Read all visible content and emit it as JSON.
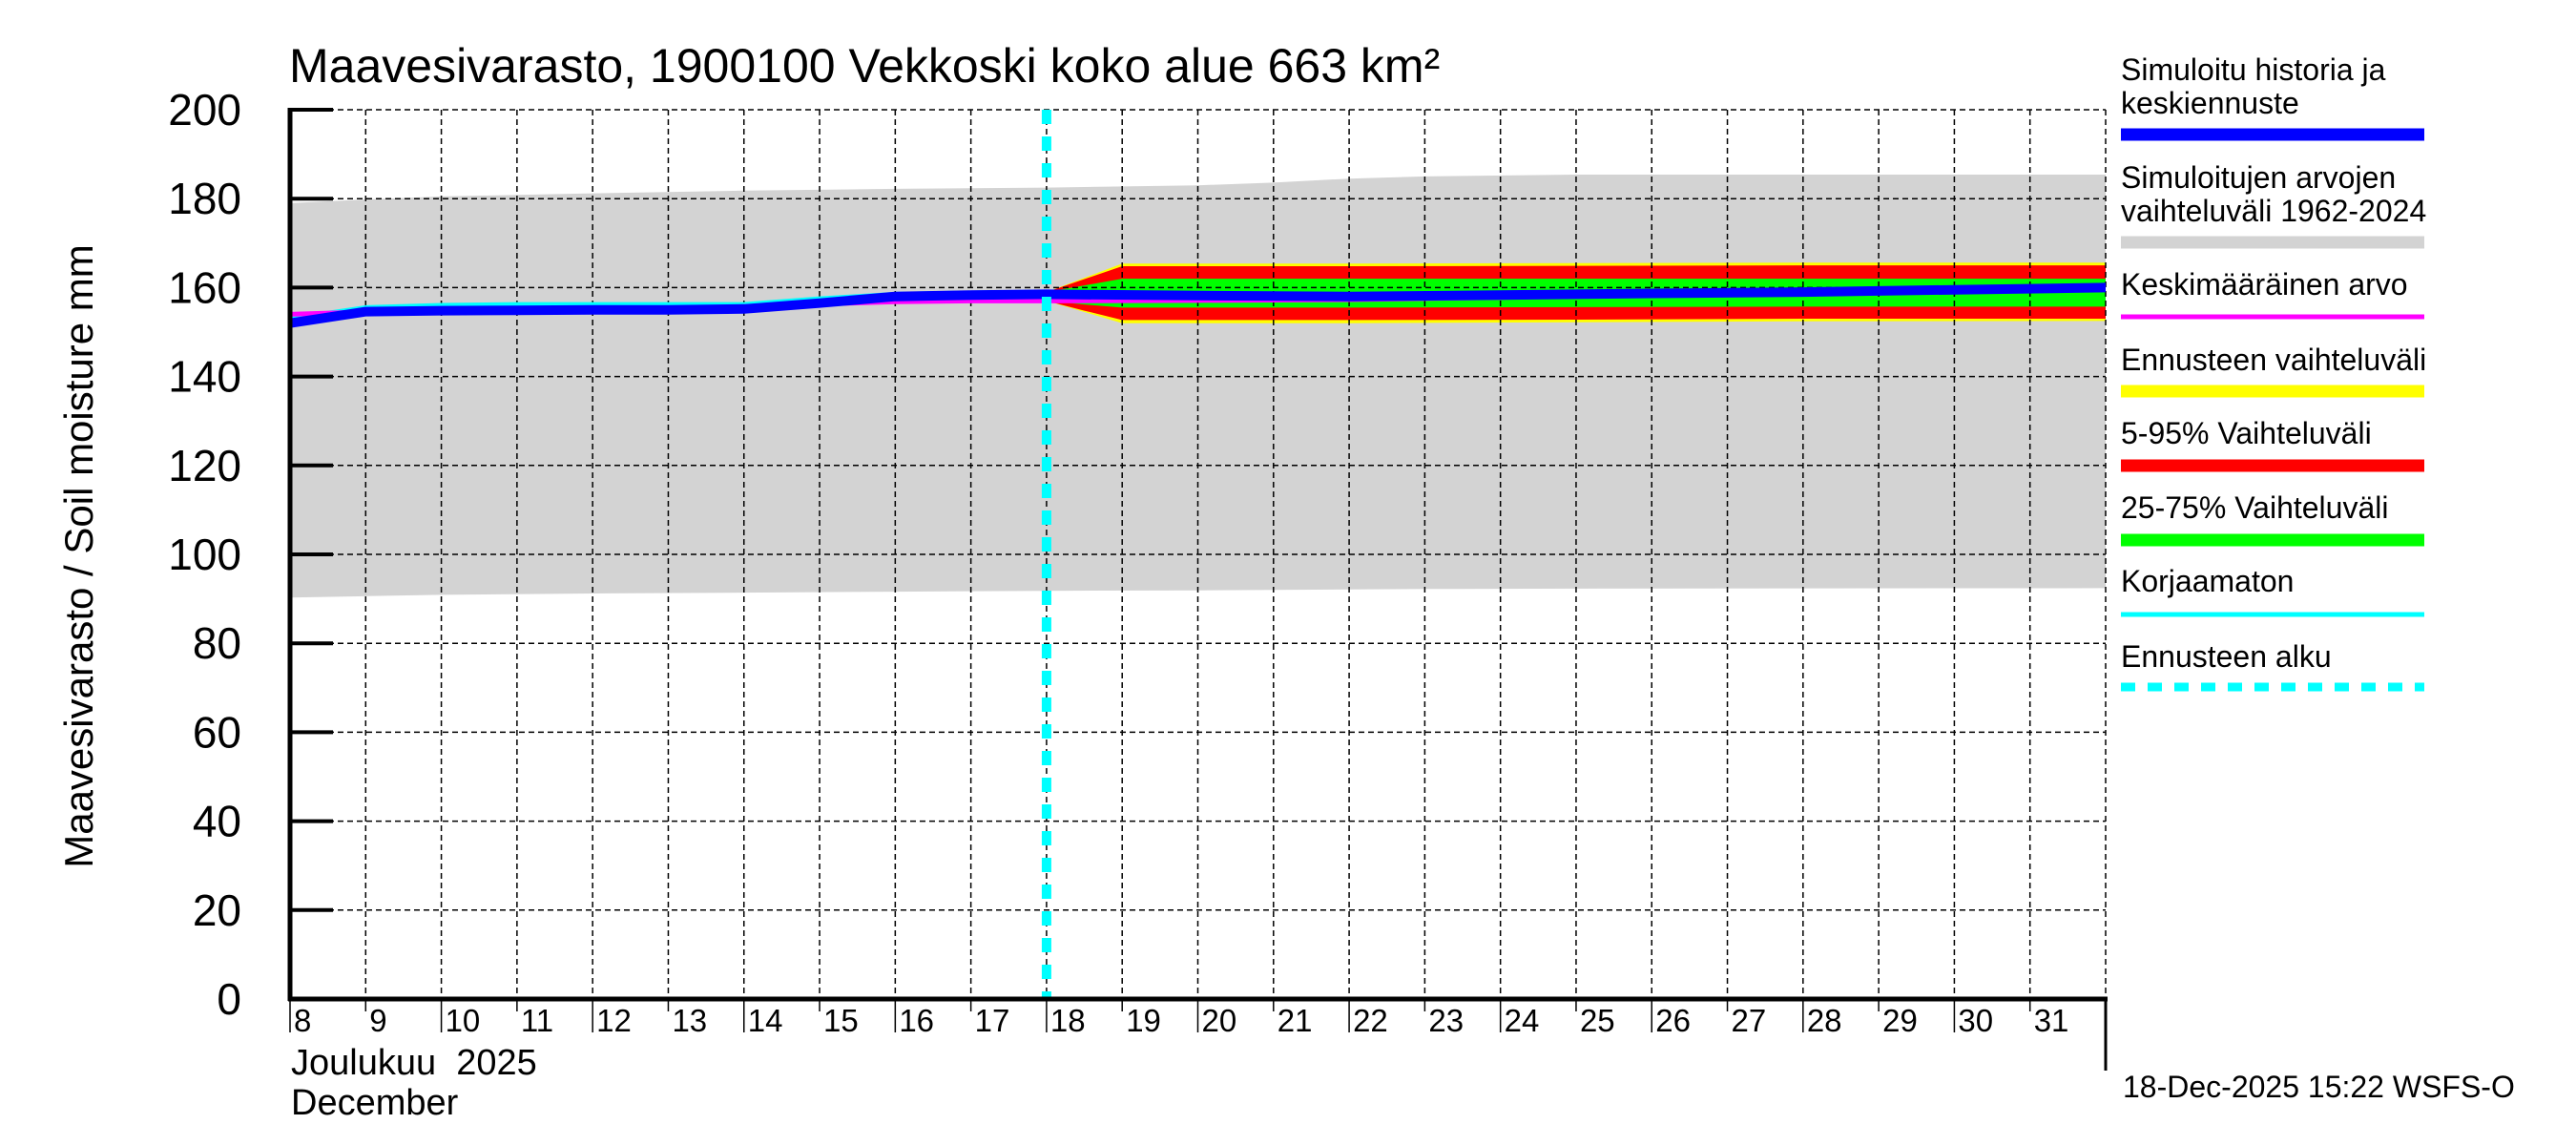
{
  "chart_data": {
    "type": "area",
    "title": "Maavesivarasto, 1900100 Vekkoski koko alue 663 km²",
    "ylabel": "Maavesivarasto / Soil moisture   mm",
    "xlabel_line1": "Joulukuu  2025",
    "xlabel_line2": "December",
    "ylim": [
      0,
      200
    ],
    "xlim": [
      8,
      32
    ],
    "grid": true,
    "legend_position": "right",
    "y_ticks": [
      "0",
      "20",
      "40",
      "60",
      "80",
      "100",
      "120",
      "140",
      "160",
      "180",
      "200"
    ],
    "y_tick_values": [
      0,
      20,
      40,
      60,
      80,
      100,
      120,
      140,
      160,
      180,
      200
    ],
    "x_ticks": [
      "8",
      "9",
      "10",
      "11",
      "12",
      "13",
      "14",
      "15",
      "16",
      "17",
      "18",
      "19",
      "20",
      "21",
      "22",
      "23",
      "24",
      "25",
      "26",
      "27",
      "28",
      "29",
      "30",
      "31"
    ],
    "x_tick_values": [
      8,
      9,
      10,
      11,
      12,
      13,
      14,
      15,
      16,
      17,
      18,
      19,
      20,
      21,
      22,
      23,
      24,
      25,
      26,
      27,
      28,
      29,
      30,
      31
    ],
    "forecast_start": 18,
    "series": [
      {
        "name": "Simuloitujen arvojen vaihteluväli 1962-2024",
        "kind": "band",
        "color": "#d3d3d3",
        "x": [
          8,
          9,
          10,
          12,
          14,
          16,
          18,
          20,
          21,
          22,
          23,
          25,
          32
        ],
        "upper": [
          179.0,
          179.8,
          180.5,
          181.2,
          181.8,
          182.2,
          182.5,
          183.0,
          183.6,
          184.5,
          185.0,
          185.4,
          185.4
        ],
        "lower": [
          90.3,
          90.6,
          90.9,
          91.2,
          91.4,
          91.6,
          91.8,
          91.9,
          92.0,
          92.1,
          92.2,
          92.3,
          92.4
        ]
      },
      {
        "name": "Ennusteen vaihteluväli",
        "kind": "band",
        "color": "#ffff00",
        "x": [
          18,
          18.5,
          19,
          22,
          25,
          28,
          32
        ],
        "upper": [
          159.0,
          162.2,
          165.4,
          165.4,
          165.5,
          165.6,
          165.6
        ],
        "lower": [
          157.0,
          154.5,
          152.0,
          152.0,
          152.2,
          152.4,
          152.5
        ]
      },
      {
        "name": "5-95% Vaihteluväli",
        "kind": "band",
        "color": "#ff0000",
        "x": [
          18,
          18.5,
          19,
          22,
          25,
          28,
          32
        ],
        "upper": [
          159.0,
          161.9,
          164.8,
          164.8,
          164.9,
          165.0,
          165.0
        ],
        "lower": [
          157.0,
          154.8,
          152.7,
          152.7,
          152.8,
          153.0,
          153.0
        ]
      },
      {
        "name": "25-75% Vaihteluväli",
        "kind": "band",
        "color": "#00ff00",
        "x": [
          18,
          18.5,
          19,
          22,
          25,
          28,
          32
        ],
        "upper": [
          159.0,
          160.5,
          162.0,
          162.0,
          162.0,
          162.0,
          162.0
        ],
        "lower": [
          157.0,
          156.2,
          155.5,
          155.5,
          155.6,
          155.7,
          155.7
        ]
      },
      {
        "name": "Korjaamaton",
        "kind": "line",
        "color": "#00ffff",
        "width": 5,
        "x": [
          8,
          9,
          10,
          11,
          12,
          13,
          14,
          15,
          16,
          17,
          18
        ],
        "values": [
          153.0,
          155.5,
          156.0,
          156.2,
          156.2,
          156.2,
          156.2,
          157.5,
          158.5,
          158.8,
          159.0
        ]
      },
      {
        "name": "Keskimääräinen arvo",
        "kind": "line",
        "color": "#ff00ff",
        "width": 5,
        "x": [
          8,
          9,
          10,
          11,
          12,
          13,
          14,
          15,
          16,
          17,
          18,
          20,
          22,
          24,
          26,
          28,
          30,
          32
        ],
        "values": [
          154.0,
          154.5,
          154.8,
          155.0,
          155.2,
          155.4,
          155.7,
          156.3,
          156.8,
          157.0,
          157.0,
          157.1,
          157.3,
          157.8,
          158.5,
          159.2,
          159.8,
          160.0
        ]
      },
      {
        "name": "Simuloitu historia ja keskiennuste",
        "kind": "line",
        "color": "#0000ff",
        "width": 10,
        "x": [
          8,
          9,
          10,
          11,
          12,
          13,
          14,
          15,
          16,
          17,
          18,
          20,
          22,
          24,
          26,
          28,
          30,
          32
        ],
        "values": [
          152.0,
          154.6,
          154.8,
          154.9,
          155.0,
          155.0,
          155.2,
          156.5,
          158.0,
          158.3,
          158.5,
          158.2,
          158.0,
          158.3,
          158.7,
          159.0,
          159.5,
          160.0
        ]
      }
    ],
    "legend": [
      {
        "label_lines": [
          "Simuloitu historia ja",
          "keskiennuste"
        ],
        "color": "#0000ff",
        "style": "thick"
      },
      {
        "label_lines": [
          "Simuloitujen arvojen",
          "vaihteluväli 1962-2024"
        ],
        "color": "#d3d3d3",
        "style": "thick"
      },
      {
        "label_lines": [
          "Keskimääräinen arvo"
        ],
        "color": "#ff00ff",
        "style": "thin"
      },
      {
        "label_lines": [
          "Ennusteen vaihteluväli"
        ],
        "color": "#ffff00",
        "style": "thick"
      },
      {
        "label_lines": [
          "5-95% Vaihteluväli"
        ],
        "color": "#ff0000",
        "style": "thick"
      },
      {
        "label_lines": [
          "25-75% Vaihteluväli"
        ],
        "color": "#00ff00",
        "style": "thick"
      },
      {
        "label_lines": [
          "Korjaamaton"
        ],
        "color": "#00ffff",
        "style": "thin"
      },
      {
        "label_lines": [
          "Ennusteen alku"
        ],
        "color": "#00ffff",
        "style": "dashed"
      }
    ],
    "footer": "18-Dec-2025 15:22 WSFS-O"
  }
}
